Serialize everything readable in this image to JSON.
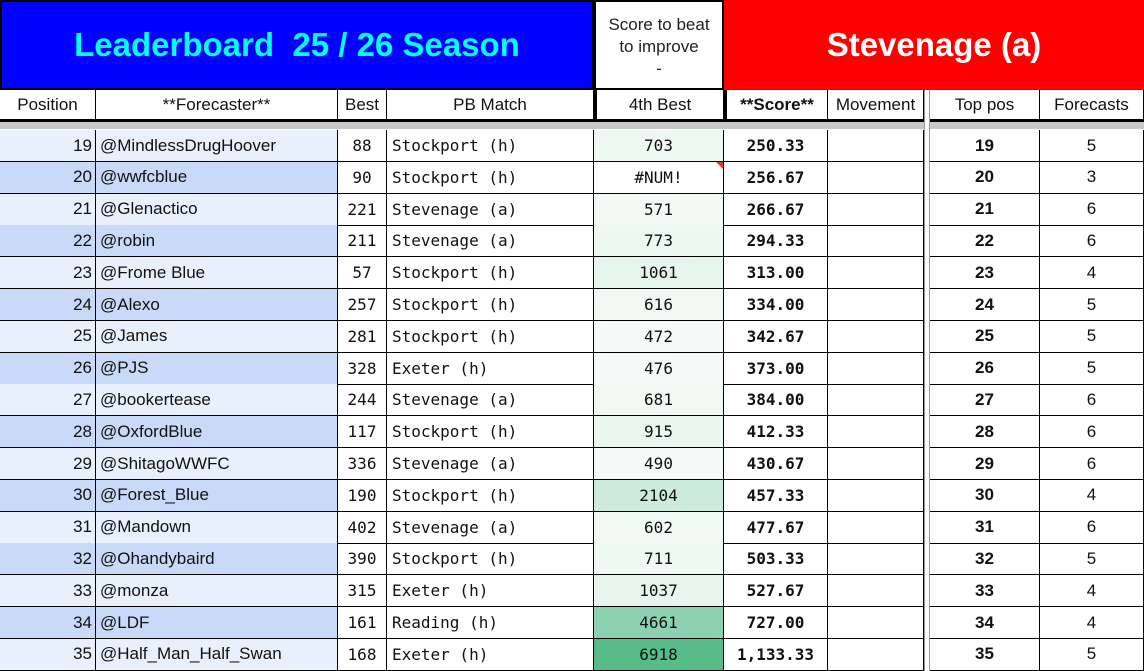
{
  "header": {
    "title": "Leaderboard  25 / 26 Season",
    "score_to_beat": [
      "Score to beat",
      "to improve",
      "-"
    ],
    "match": "Stevenage (a)"
  },
  "columns": [
    "Position",
    "**Forecaster**",
    "Best",
    "PB Match",
    "4th  Best",
    "**Score**",
    "Movement",
    "Top pos",
    "Forecasts"
  ],
  "colors": {
    "title_bg": "#0000ff",
    "title_text": "#00ffff",
    "match_bg": "#ff0000",
    "row_odd": "#e8f0fc",
    "row_even": "#c9daf8",
    "heat_high": "#57bb8a"
  },
  "rows": [
    {
      "pos": "19",
      "name": "@MindlessDrugHoover",
      "best": "88",
      "pb": "Stockport (h)",
      "fourth": "703",
      "score": "250.33",
      "movement": "",
      "top": "19",
      "forecasts": "5"
    },
    {
      "pos": "20",
      "name": "@wwfcblue",
      "best": "90",
      "pb": "Stockport (h)",
      "fourth": "#NUM!",
      "score": "256.67",
      "movement": "",
      "top": "20",
      "forecasts": "3"
    },
    {
      "pos": "21",
      "name": "@Glenactico",
      "best": "221",
      "pb": "Stevenage (a)",
      "fourth": "571",
      "score": "266.67",
      "movement": "",
      "top": "21",
      "forecasts": "6"
    },
    {
      "pos": "22",
      "name": "@robin",
      "best": "211",
      "pb": "Stevenage (a)",
      "fourth": "773",
      "score": "294.33",
      "movement": "",
      "top": "22",
      "forecasts": "6"
    },
    {
      "pos": "23",
      "name": "@Frome Blue",
      "best": "57",
      "pb": "Stockport (h)",
      "fourth": "1061",
      "score": "313.00",
      "movement": "",
      "top": "23",
      "forecasts": "4"
    },
    {
      "pos": "24",
      "name": "@Alexo",
      "best": "257",
      "pb": "Stockport (h)",
      "fourth": "616",
      "score": "334.00",
      "movement": "",
      "top": "24",
      "forecasts": "5"
    },
    {
      "pos": "25",
      "name": "@James",
      "best": "281",
      "pb": "Stockport (h)",
      "fourth": "472",
      "score": "342.67",
      "movement": "",
      "top": "25",
      "forecasts": "5"
    },
    {
      "pos": "26",
      "name": "@PJS",
      "best": "328",
      "pb": "Exeter (h)",
      "fourth": "476",
      "score": "373.00",
      "movement": "",
      "top": "26",
      "forecasts": "5"
    },
    {
      "pos": "27",
      "name": "@bookertease",
      "best": "244",
      "pb": "Stevenage (a)",
      "fourth": "681",
      "score": "384.00",
      "movement": "",
      "top": "27",
      "forecasts": "6"
    },
    {
      "pos": "28",
      "name": "@OxfordBlue",
      "best": "117",
      "pb": "Stockport (h)",
      "fourth": "915",
      "score": "412.33",
      "movement": "",
      "top": "28",
      "forecasts": "6"
    },
    {
      "pos": "29",
      "name": "@ShitagoWWFC",
      "best": "336",
      "pb": "Stevenage (a)",
      "fourth": "490",
      "score": "430.67",
      "movement": "",
      "top": "29",
      "forecasts": "6"
    },
    {
      "pos": "30",
      "name": "@Forest_Blue",
      "best": "190",
      "pb": "Stockport (h)",
      "fourth": "2104",
      "score": "457.33",
      "movement": "",
      "top": "30",
      "forecasts": "4"
    },
    {
      "pos": "31",
      "name": "@Mandown",
      "best": "402",
      "pb": "Stevenage (a)",
      "fourth": "602",
      "score": "477.67",
      "movement": "",
      "top": "31",
      "forecasts": "6"
    },
    {
      "pos": "32",
      "name": "@Ohandybaird",
      "best": "390",
      "pb": "Stockport (h)",
      "fourth": "711",
      "score": "503.33",
      "movement": "",
      "top": "32",
      "forecasts": "5"
    },
    {
      "pos": "33",
      "name": "@monza",
      "best": "315",
      "pb": "Exeter (h)",
      "fourth": "1037",
      "score": "527.67",
      "movement": "",
      "top": "33",
      "forecasts": "4"
    },
    {
      "pos": "34",
      "name": "@LDF",
      "best": "161",
      "pb": "Reading (h)",
      "fourth": "4661",
      "score": "727.00",
      "movement": "",
      "top": "34",
      "forecasts": "4"
    },
    {
      "pos": "35",
      "name": "@Half_Man_Half_Swan",
      "best": "168",
      "pb": "Exeter (h)",
      "fourth": "6918",
      "score": "1,133.33",
      "movement": "",
      "top": "35",
      "forecasts": "5"
    }
  ]
}
